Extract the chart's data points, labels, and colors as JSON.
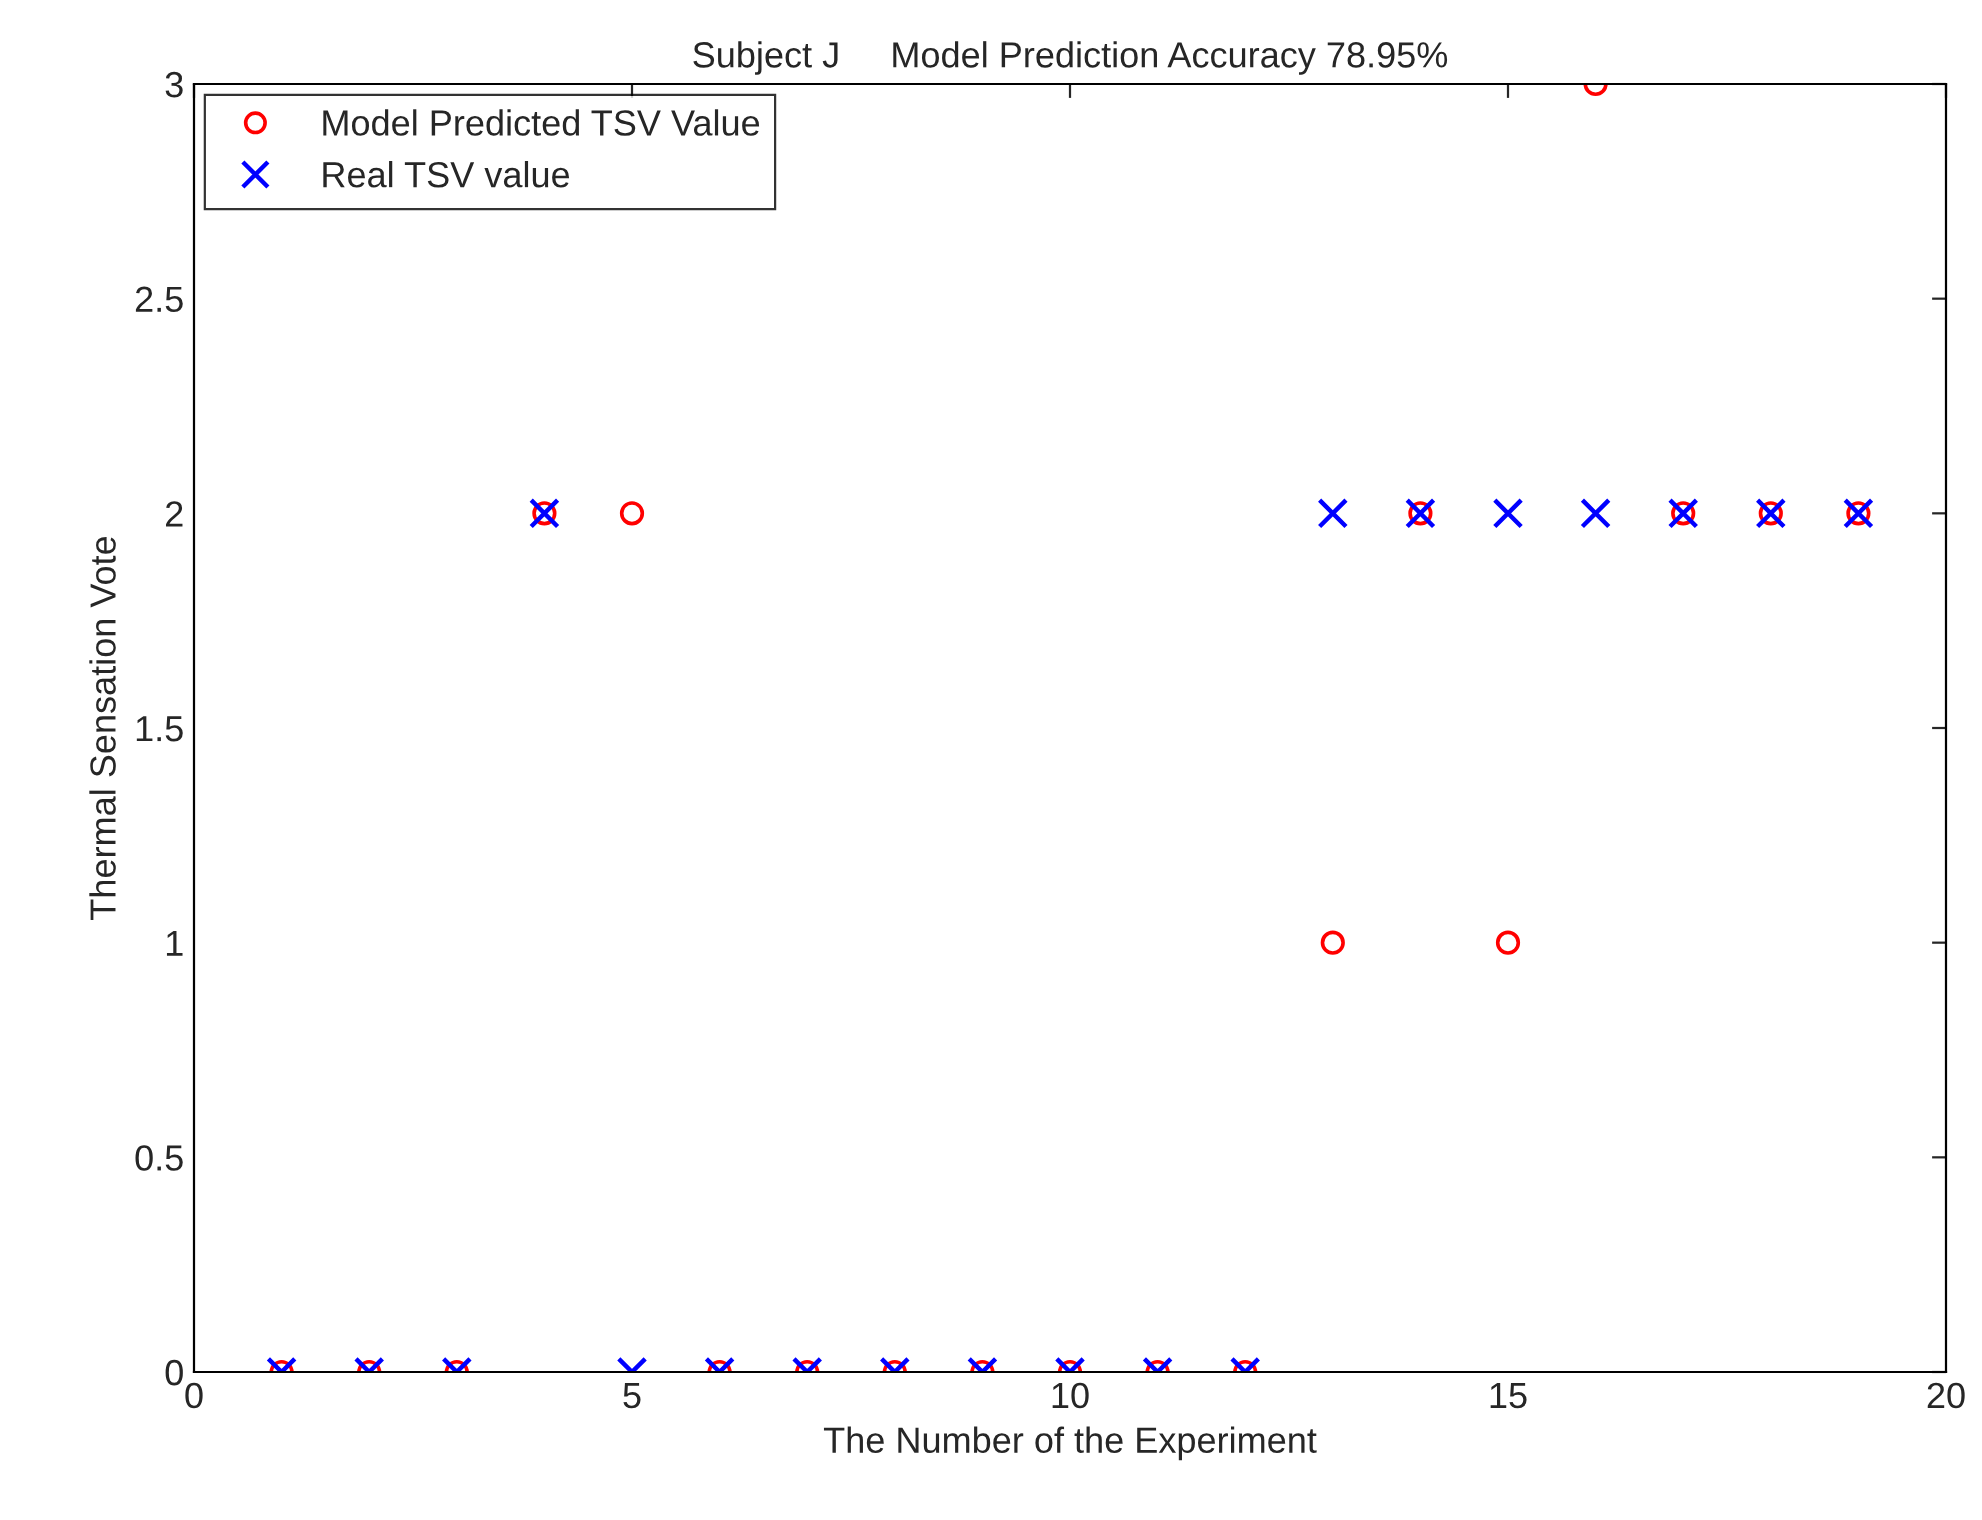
{
  "chart_data": {
    "type": "scatter",
    "title": "Subject J     Model Prediction Accuracy 78.95%",
    "xlabel": "The Number of the Experiment",
    "ylabel": "Thermal Sensation Vote",
    "x": [
      1,
      2,
      3,
      4,
      5,
      6,
      7,
      8,
      9,
      10,
      11,
      12,
      13,
      14,
      15,
      16,
      17,
      18,
      19
    ],
    "series": [
      {
        "name": "Model Predicted TSV Value",
        "color": "#ff0000",
        "marker": "circle",
        "values": [
          0,
          0,
          0,
          2,
          2,
          0,
          0,
          0,
          0,
          0,
          0,
          0,
          1,
          2,
          1,
          3,
          2,
          2,
          2
        ]
      },
      {
        "name": "Real TSV value",
        "color": "#0000ff",
        "marker": "cross",
        "values": [
          0,
          0,
          0,
          2,
          0,
          0,
          0,
          0,
          0,
          0,
          0,
          0,
          2,
          2,
          2,
          2,
          2,
          2,
          2
        ]
      }
    ],
    "xlim": [
      0,
      20
    ],
    "xticks": [
      0,
      5,
      10,
      15,
      20
    ],
    "ylim": [
      0,
      3
    ],
    "yticks": [
      0,
      0.5,
      1,
      1.5,
      2,
      2.5,
      3
    ],
    "grid": false,
    "legend": "top left"
  }
}
